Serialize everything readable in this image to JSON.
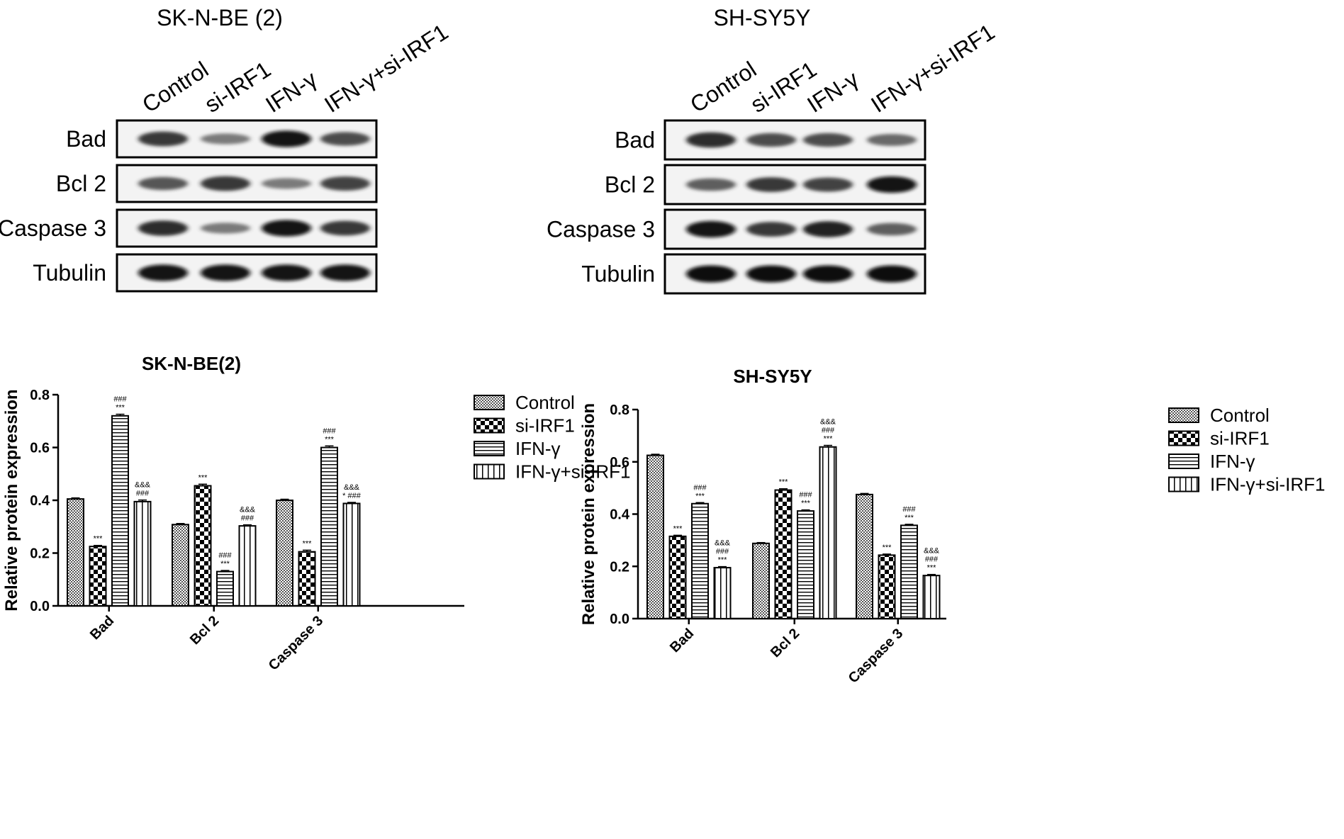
{
  "blots": [
    {
      "title": "SK-N-BE (2)",
      "lanes": [
        "Control",
        "si-IRF1",
        "IFN-γ",
        "IFN-γ+si-IRF1"
      ],
      "rows": [
        {
          "label": "Bad",
          "intensity": [
            0.8,
            0.45,
            0.95,
            0.7
          ]
        },
        {
          "label": "Bcl 2",
          "intensity": [
            0.65,
            0.8,
            0.45,
            0.75
          ]
        },
        {
          "label": "Caspase 3",
          "intensity": [
            0.85,
            0.45,
            0.95,
            0.8
          ]
        },
        {
          "label": "Tubulin",
          "intensity": [
            0.95,
            0.95,
            0.95,
            0.95
          ]
        }
      ]
    },
    {
      "title": "SH-SY5Y",
      "lanes": [
        "Control",
        "si-IRF1",
        "IFN-γ",
        "IFN-γ+si-IRF1"
      ],
      "rows": [
        {
          "label": "Bad",
          "intensity": [
            0.85,
            0.7,
            0.7,
            0.55
          ]
        },
        {
          "label": "Bcl 2",
          "intensity": [
            0.6,
            0.8,
            0.75,
            0.95
          ]
        },
        {
          "label": "Caspase 3",
          "intensity": [
            0.95,
            0.8,
            0.9,
            0.6
          ]
        },
        {
          "label": "Tubulin",
          "intensity": [
            1.0,
            1.0,
            1.0,
            1.0
          ]
        }
      ]
    }
  ],
  "chart_data": [
    {
      "type": "bar",
      "title": "SK-N-BE(2)",
      "xlabel": "",
      "ylabel": "Relative protein expression",
      "ylim": [
        0,
        0.8
      ],
      "yticks": [
        "0.0",
        "0.2",
        "0.4",
        "0.6",
        "0.8"
      ],
      "categories": [
        "Bad",
        "Bcl 2",
        "Caspase 3"
      ],
      "legend_position": "right",
      "series": [
        {
          "name": "Control",
          "pattern": "dots",
          "values": [
            0.405,
            0.308,
            0.4
          ],
          "errors": [
            0.004,
            0.004,
            0.004
          ]
        },
        {
          "name": "si-IRF1",
          "pattern": "checker",
          "values": [
            0.225,
            0.455,
            0.205
          ],
          "errors": [
            0.004,
            0.006,
            0.006
          ]
        },
        {
          "name": "IFN-γ",
          "pattern": "horizontal",
          "values": [
            0.72,
            0.13,
            0.6
          ],
          "errors": [
            0.006,
            0.004,
            0.006
          ]
        },
        {
          "name": "IFN-γ+si-IRF1",
          "pattern": "vertical",
          "values": [
            0.395,
            0.303,
            0.388
          ],
          "errors": [
            0.006,
            0.004,
            0.004
          ]
        }
      ],
      "annotations": [
        [
          [],
          [
            "***"
          ],
          [
            "###",
            "***"
          ],
          [
            "&&&",
            "###"
          ]
        ],
        [
          [],
          [
            "***"
          ],
          [
            "###",
            "***"
          ],
          [
            "&&&",
            "###"
          ]
        ],
        [
          [],
          [
            "***"
          ],
          [
            "###",
            "***"
          ],
          [
            "&&&",
            "* ###"
          ]
        ]
      ]
    },
    {
      "type": "bar",
      "title": "SH-SY5Y",
      "xlabel": "",
      "ylabel": "Relative protein expression",
      "ylim": [
        0,
        0.8
      ],
      "yticks": [
        "0.0",
        "0.2",
        "0.4",
        "0.6",
        "0.8"
      ],
      "categories": [
        "Bad",
        "Bcl 2",
        "Caspase 3"
      ],
      "legend_position": "right",
      "series": [
        {
          "name": "Control",
          "pattern": "dots",
          "values": [
            0.625,
            0.288,
            0.475
          ],
          "errors": [
            0.004,
            0.003,
            0.004
          ]
        },
        {
          "name": "si-IRF1",
          "pattern": "checker",
          "values": [
            0.315,
            0.492,
            0.243
          ],
          "errors": [
            0.004,
            0.005,
            0.004
          ]
        },
        {
          "name": "IFN-γ",
          "pattern": "horizontal",
          "values": [
            0.44,
            0.412,
            0.357
          ],
          "errors": [
            0.004,
            0.004,
            0.004
          ]
        },
        {
          "name": "IFN-γ+si-IRF1",
          "pattern": "vertical",
          "values": [
            0.195,
            0.657,
            0.165
          ],
          "errors": [
            0.004,
            0.006,
            0.004
          ]
        }
      ],
      "annotations": [
        [
          [],
          [
            "***"
          ],
          [
            "###",
            "***"
          ],
          [
            "&&&",
            "###",
            "***"
          ]
        ],
        [
          [],
          [
            "***"
          ],
          [
            "###",
            "***"
          ],
          [
            "&&&",
            "###",
            "***"
          ]
        ],
        [
          [],
          [
            "***"
          ],
          [
            "###",
            "***"
          ],
          [
            "&&&",
            "###",
            "***"
          ]
        ]
      ]
    }
  ]
}
